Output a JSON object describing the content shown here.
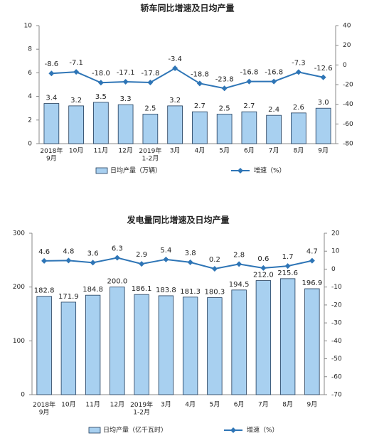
{
  "chart_data": [
    {
      "type": "bar",
      "title": "轿车同比增速及日均产量",
      "categories": [
        "2018年\n9月",
        "10月",
        "11月",
        "12月",
        "2019年\n1-2月",
        "3月",
        "4月",
        "5月",
        "6月",
        "7月",
        "8月",
        "9月"
      ],
      "series": [
        {
          "name": "日均产量（万辆）",
          "color": "#a8d0f0",
          "values": [
            3.4,
            3.2,
            3.5,
            3.3,
            2.5,
            3.2,
            2.7,
            2.5,
            2.7,
            2.4,
            2.6,
            3.0
          ],
          "value_labels": [
            "3.4",
            "3.2",
            "3.5",
            "3.3",
            "2.5",
            "3.2",
            "2.7",
            "2.5",
            "2.7",
            "2.4",
            "2.6",
            "3.0"
          ]
        },
        {
          "name": "增速（%）",
          "color": "#2e75b6",
          "axis": "y2",
          "values": [
            -8.6,
            -7.1,
            -18.0,
            -17.1,
            -17.8,
            -3.4,
            -18.8,
            -23.8,
            -16.8,
            -16.8,
            -7.3,
            -12.6
          ],
          "value_labels": [
            "-8.6",
            "-7.1",
            "-18.0",
            "-17.1",
            "-17.8",
            "-3.4",
            "-18.8",
            "-23.8",
            "-16.8",
            "-16.8",
            "-7.3",
            "-12.6"
          ]
        }
      ],
      "ylim": [
        0,
        10
      ],
      "yticks": [
        0,
        2,
        4,
        6,
        8,
        10
      ],
      "y2lim": [
        -80,
        40
      ],
      "y2ticks": [
        40,
        20,
        0,
        -20,
        -40,
        -60,
        -80
      ]
    },
    {
      "type": "bar",
      "title": "发电量同比增速及日均产量",
      "categories": [
        "2018年\n9月",
        "10月",
        "11月",
        "12月",
        "2019年\n1-2月",
        "3月",
        "4月",
        "5月",
        "6月",
        "7月",
        "8月",
        "9月"
      ],
      "series": [
        {
          "name": "日均产量（亿千瓦时）",
          "color": "#a8d0f0",
          "values": [
            182.8,
            171.9,
            184.8,
            200.0,
            186.1,
            183.8,
            181.3,
            180.3,
            194.5,
            212.0,
            215.6,
            196.9
          ],
          "value_labels": [
            "182.8",
            "171.9",
            "184.8",
            "200.0",
            "186.1",
            "183.8",
            "181.3",
            "180.3",
            "194.5",
            "212.0",
            "215.6",
            "196.9"
          ]
        },
        {
          "name": "增速（%）",
          "color": "#2e75b6",
          "axis": "y2",
          "values": [
            4.6,
            4.8,
            3.6,
            6.3,
            2.9,
            5.4,
            3.8,
            0.2,
            2.8,
            0.6,
            1.7,
            4.7
          ]
        }
      ],
      "ylim": [
        0,
        300
      ],
      "yticks": [
        0,
        100,
        200,
        300
      ],
      "y2lim": [
        -70,
        20
      ],
      "y2ticks": [
        20,
        10,
        0,
        -10,
        -20,
        -30,
        -40,
        -50,
        -60,
        -70
      ]
    }
  ]
}
